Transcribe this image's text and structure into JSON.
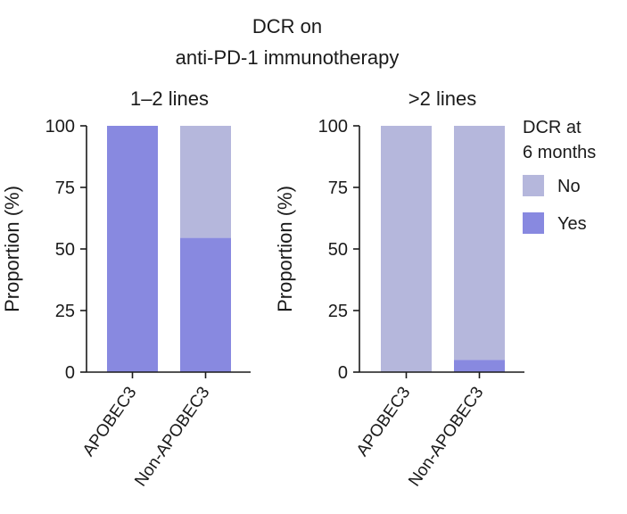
{
  "title_line1": "DCR on",
  "title_line2": "anti-PD-1 immunotherapy",
  "legend": {
    "title_line1": "DCR at",
    "title_line2": "6 months",
    "items": [
      {
        "label": "No",
        "color": "#b5b7dc"
      },
      {
        "label": "Yes",
        "color": "#8889e0"
      }
    ]
  },
  "chart_data": [
    {
      "type": "bar",
      "stacked": true,
      "title": "1–2 lines",
      "ylabel": "Proportion (%)",
      "ylim": [
        0,
        100
      ],
      "yticks": [
        "0",
        "25",
        "50",
        "75",
        "100"
      ],
      "categories": [
        "APOBEC3",
        "Non-APOBEC3"
      ],
      "series": [
        {
          "name": "Yes",
          "values": [
            100,
            54.5
          ]
        },
        {
          "name": "No",
          "values": [
            0,
            45.5
          ]
        }
      ]
    },
    {
      "type": "bar",
      "stacked": true,
      "title": ">2 lines",
      "ylabel": "Proportion (%)",
      "ylim": [
        0,
        100
      ],
      "yticks": [
        "0",
        "25",
        "50",
        "75",
        "100"
      ],
      "categories": [
        "APOBEC3",
        "Non-APOBEC3"
      ],
      "series": [
        {
          "name": "Yes",
          "values": [
            0,
            5
          ]
        },
        {
          "name": "No",
          "values": [
            100,
            95
          ]
        }
      ]
    }
  ]
}
